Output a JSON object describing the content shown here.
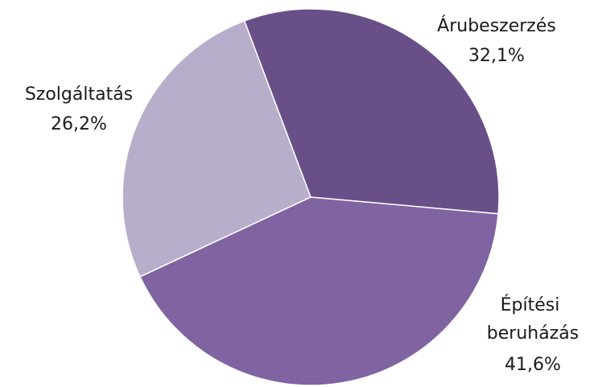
{
  "chart_data": {
    "type": "pie",
    "categories": [
      "Árubeszerzés",
      "Építési beruházás",
      "Szolgáltatás"
    ],
    "values": [
      32.1,
      41.6,
      26.2
    ],
    "value_labels": [
      "32,1%",
      "41,6%",
      "26,2%"
    ],
    "colors": [
      "#684f88",
      "#8064a2",
      "#b8aecb"
    ]
  }
}
